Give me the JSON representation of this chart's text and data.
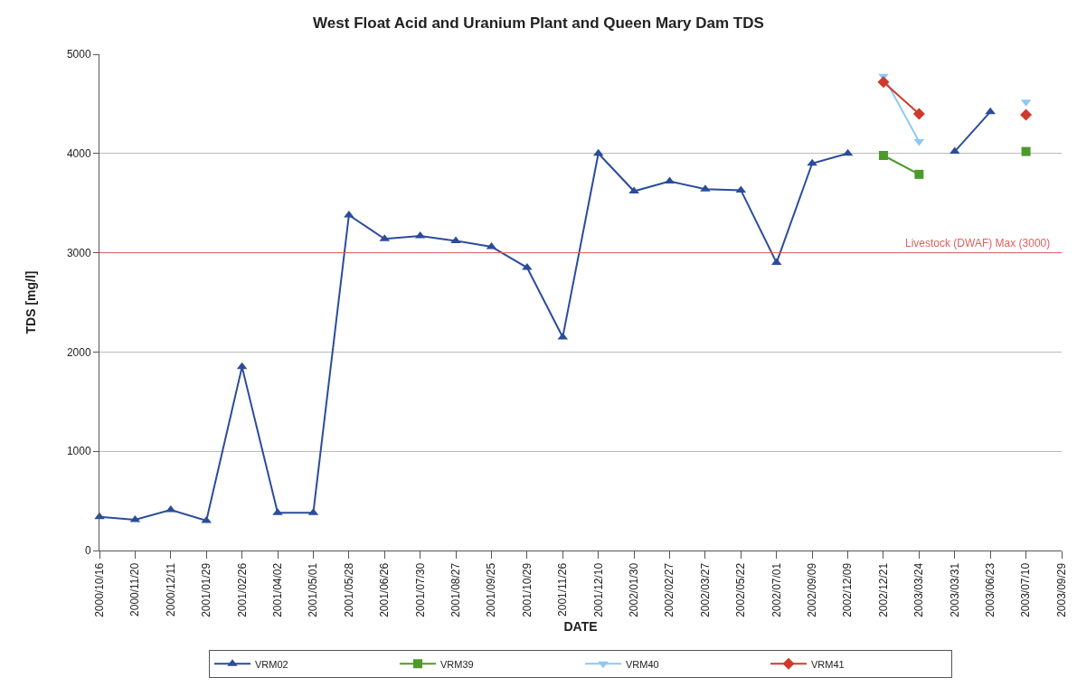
{
  "chart_data": {
    "type": "line",
    "title": "West Float Acid and Uranium Plant and Queen Mary Dam TDS",
    "xlabel": "DATE",
    "ylabel": "TDS [mg/l]",
    "categories": [
      "2000/10/16",
      "2000/11/20",
      "2000/12/11",
      "2001/01/29",
      "2001/02/26",
      "2001/04/02",
      "2001/05/01",
      "2001/05/28",
      "2001/06/26",
      "2001/07/30",
      "2001/08/27",
      "2001/09/25",
      "2001/10/29",
      "2001/11/26",
      "2001/12/10",
      "2002/01/30",
      "2002/02/27",
      "2002/03/27",
      "2002/05/22",
      "2002/07/01",
      "2002/09/09",
      "2002/12/09",
      "2002/12/21",
      "2003/03/24",
      "2003/03/31",
      "2003/06/23",
      "2003/07/10",
      "2003/09/29"
    ],
    "series": [
      {
        "name": "VRM02",
        "color": "#2b4c9b",
        "marker": "triangle",
        "values": [
          340,
          310,
          410,
          300,
          1850,
          380,
          380,
          3380,
          3140,
          3170,
          3120,
          3060,
          2850,
          2150,
          4000,
          3620,
          3720,
          3640,
          3630,
          2900,
          3900,
          4000,
          null,
          null,
          4020,
          4420,
          null,
          null
        ]
      },
      {
        "name": "VRM39",
        "color": "#4c9a2a",
        "marker": "square",
        "values": [
          null,
          null,
          null,
          null,
          null,
          null,
          null,
          null,
          null,
          null,
          null,
          null,
          null,
          null,
          null,
          null,
          null,
          null,
          null,
          null,
          null,
          null,
          3980,
          3790,
          null,
          null,
          4020,
          null
        ]
      },
      {
        "name": "VRM40",
        "color": "#8ec8f0",
        "marker": "triangle-down",
        "values": [
          null,
          null,
          null,
          null,
          null,
          null,
          null,
          null,
          null,
          null,
          null,
          null,
          null,
          null,
          null,
          null,
          null,
          null,
          null,
          null,
          null,
          null,
          4780,
          4120,
          null,
          null,
          4520,
          null
        ]
      },
      {
        "name": "VRM41",
        "color": "#cf3a2a",
        "marker": "diamond",
        "values": [
          null,
          null,
          null,
          null,
          null,
          null,
          null,
          null,
          null,
          null,
          null,
          null,
          null,
          null,
          null,
          null,
          null,
          null,
          null,
          null,
          null,
          null,
          4720,
          4400,
          null,
          null,
          4390,
          null
        ]
      }
    ],
    "ylim": [
      0,
      5000
    ],
    "yticks": [
      0,
      1000,
      2000,
      3000,
      4000,
      5000
    ],
    "grid": "y",
    "legend": "bottom",
    "line_style": "solid",
    "ref_lines": [
      {
        "axis": "y",
        "value": 3000,
        "label": "Livestock (DWAF) Max (3000)",
        "color": "#e06060"
      }
    ]
  }
}
